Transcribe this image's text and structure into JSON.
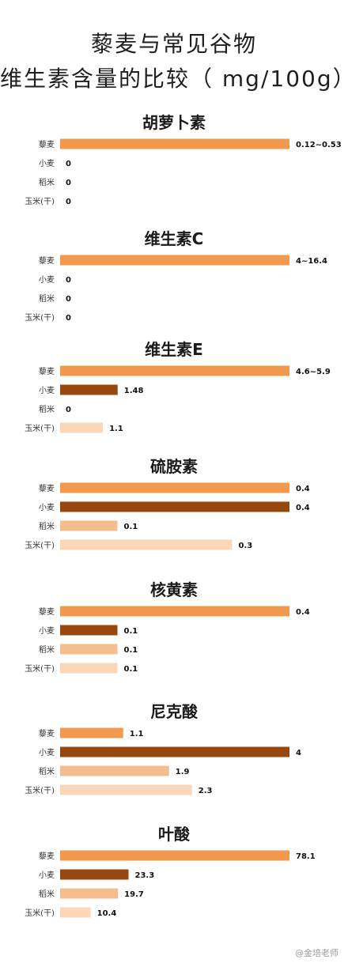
{
  "title": {
    "line1": "藜麦与常见谷物",
    "line2": "维生素含量的比较（ mg/100g）"
  },
  "watermark": "@金培老师",
  "colors": {
    "藜麦": "#f2994f",
    "小麦": "#96480e",
    "稻米": "#f4bd90",
    "玉米(干)": "#fbd7b9"
  },
  "chart_data": [
    {
      "type": "bar",
      "title": "胡萝卜素",
      "categories": [
        "藜麦",
        "小麦",
        "稻米",
        "玉米(干)"
      ],
      "values": [
        0.53,
        0,
        0,
        0
      ],
      "value_labels": [
        "0.12~0.53",
        "0",
        "0",
        "0"
      ]
    },
    {
      "type": "bar",
      "title": "维生素C",
      "categories": [
        "藜麦",
        "小麦",
        "稻米",
        "玉米(干)"
      ],
      "values": [
        16.4,
        0,
        0,
        0
      ],
      "value_labels": [
        "4~16.4",
        "0",
        "0",
        "0"
      ]
    },
    {
      "type": "bar",
      "title": "维生素E",
      "categories": [
        "藜麦",
        "小麦",
        "稻米",
        "玉米(干)"
      ],
      "values": [
        5.9,
        1.48,
        0,
        1.1
      ],
      "value_labels": [
        "4.6~5.9",
        "1.48",
        "0",
        "1.1"
      ]
    },
    {
      "type": "bar",
      "title": "硫胺素",
      "categories": [
        "藜麦",
        "小麦",
        "稻米",
        "玉米(干)"
      ],
      "values": [
        0.4,
        0.4,
        0.1,
        0.3
      ],
      "value_labels": [
        "0.4",
        "0.4",
        "0.1",
        "0.3"
      ]
    },
    {
      "type": "bar",
      "title": "核黄素",
      "categories": [
        "藜麦",
        "小麦",
        "稻米",
        "玉米(干)"
      ],
      "values": [
        0.4,
        0.1,
        0.1,
        0.1
      ],
      "value_labels": [
        "0.4",
        "0.1",
        "0.1",
        "0.1"
      ]
    },
    {
      "type": "bar",
      "title": "尼克酸",
      "categories": [
        "藜麦",
        "小麦",
        "稻米",
        "玉米(干)"
      ],
      "values": [
        1.1,
        4,
        1.9,
        2.3
      ],
      "value_labels": [
        "1.1",
        "4",
        "1.9",
        "2.3"
      ]
    },
    {
      "type": "bar",
      "title": "叶酸",
      "categories": [
        "藜麦",
        "小麦",
        "稻米",
        "玉米(干)"
      ],
      "values": [
        78.1,
        23.3,
        19.7,
        10.4
      ],
      "value_labels": [
        "78.1",
        "23.3",
        "19.7",
        "10.4"
      ]
    }
  ]
}
